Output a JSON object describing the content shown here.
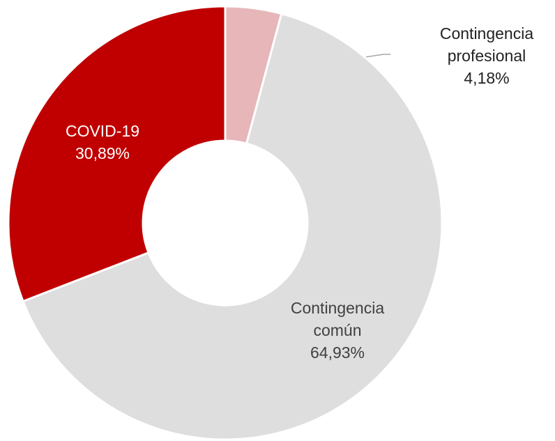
{
  "chart_data": {
    "type": "donut",
    "categories": [
      "Contingencia profesional",
      "Contingencia común",
      "COVID-19"
    ],
    "values": [
      4.18,
      64.93,
      30.89
    ],
    "value_labels": [
      "4,18%",
      "64,93%",
      "30,89%"
    ],
    "colors": [
      "#e6b6b9",
      "#dedede",
      "#c00000"
    ]
  }
}
